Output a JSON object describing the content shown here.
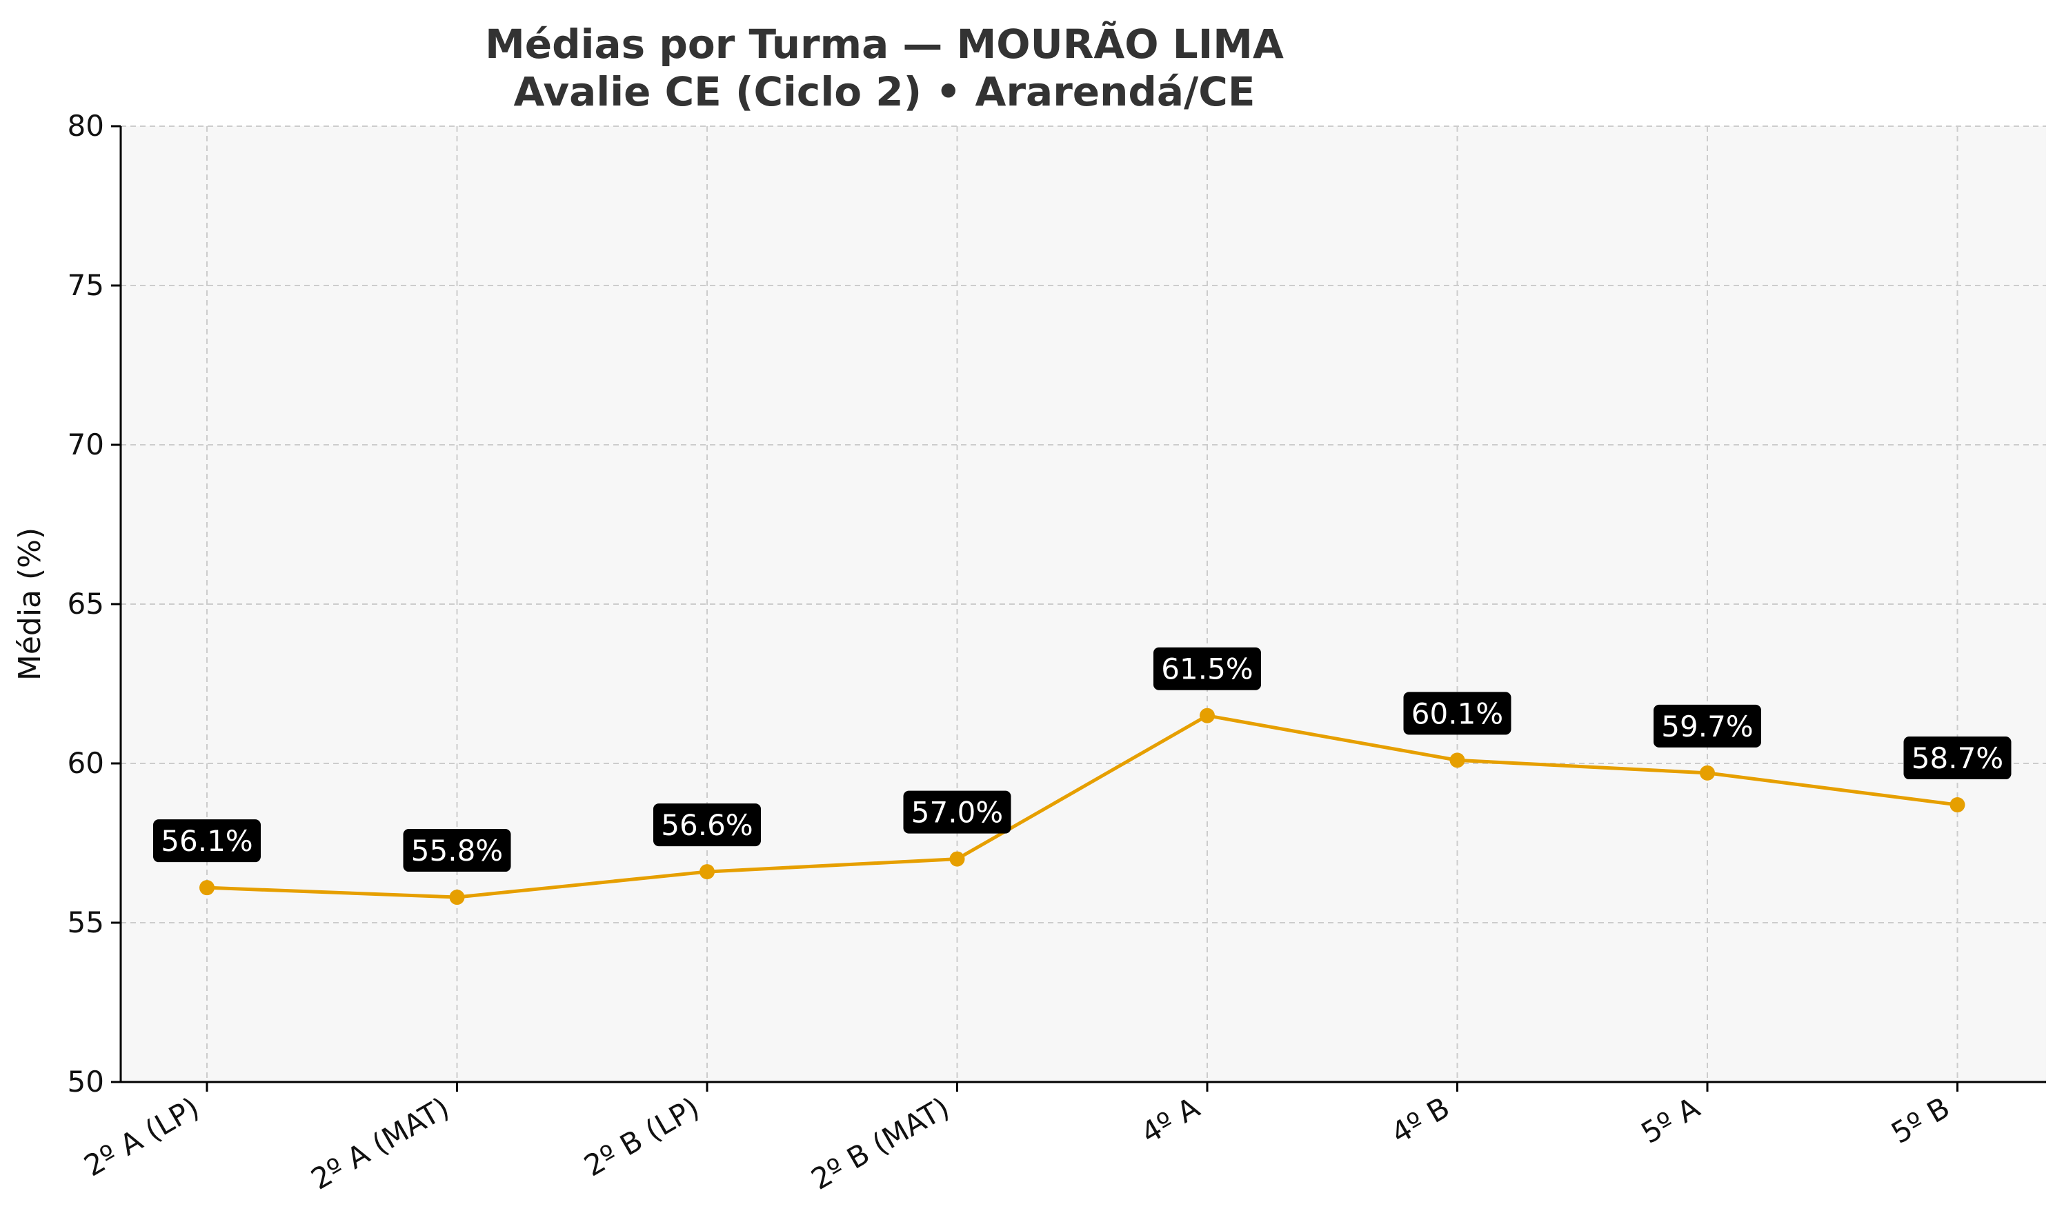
{
  "chart_data": {
    "type": "line",
    "title": "Médias por Turma — MOURÃO LIMA",
    "subtitle": "Avalie CE (Ciclo 2) • Ararendá/CE",
    "xlabel": "",
    "ylabel": "Média (%)",
    "ylim": [
      50,
      80
    ],
    "yticks": [
      50,
      55,
      60,
      65,
      70,
      75,
      80
    ],
    "grid": true,
    "categories": [
      "2º A (LP)",
      "2º A (MAT)",
      "2º B (LP)",
      "2º B (MAT)",
      "4º A",
      "4º B",
      "5º A",
      "5º B"
    ],
    "series": [
      {
        "values": [
          56.1,
          55.8,
          56.6,
          57.0,
          61.5,
          60.1,
          59.7,
          58.7
        ],
        "color": "#E69F00"
      }
    ],
    "data_labels": [
      "56.1%",
      "55.8%",
      "56.6%",
      "57.0%",
      "61.5%",
      "60.1%",
      "59.7%",
      "58.7%"
    ],
    "colors": {
      "plot_background": "#f7f7f7",
      "grid": "#cccccc",
      "label_box": "#000000",
      "label_text": "#ffffff",
      "text": "#333333"
    }
  }
}
